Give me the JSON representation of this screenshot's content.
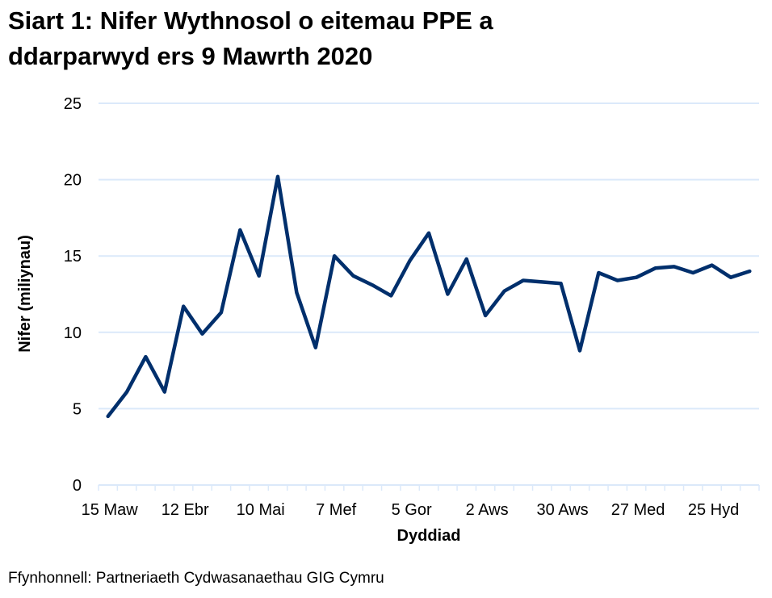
{
  "chart_data": {
    "type": "line",
    "title_lines": [
      "Siart 1: Nifer Wythnosol o eitemau PPE a",
      "ddarparwyd ers 9 Mawrth 2020"
    ],
    "xlabel": "Dyddiad",
    "ylabel": "Nifer (miliynau)",
    "ylim": [
      0,
      25
    ],
    "yticks": [
      0,
      5,
      10,
      15,
      20,
      25
    ],
    "grid": true,
    "x_tick_labels": [
      "15 Maw",
      "12 Ebr",
      "10 Mai",
      "7 Mef",
      "5 Gor",
      "2 Aws",
      "30 Aws",
      "27 Med",
      "25 Hyd"
    ],
    "x_tick_label_every": 4,
    "series": [
      {
        "color": "#002f6c",
        "values": [
          4.5,
          6.1,
          8.4,
          6.1,
          11.7,
          9.9,
          11.3,
          16.7,
          13.7,
          20.2,
          12.6,
          9.0,
          15.0,
          13.7,
          13.1,
          12.4,
          14.7,
          16.5,
          12.5,
          14.8,
          11.1,
          12.7,
          13.4,
          13.3,
          13.2,
          8.8,
          13.9,
          13.4,
          13.6,
          14.2,
          14.3,
          13.9,
          14.4,
          13.6,
          14.0
        ]
      }
    ],
    "gridline_color": "#dbe9fa"
  },
  "source": "Ffynhonnell: Partneriaeth Cydwasanaethau GIG Cymru"
}
